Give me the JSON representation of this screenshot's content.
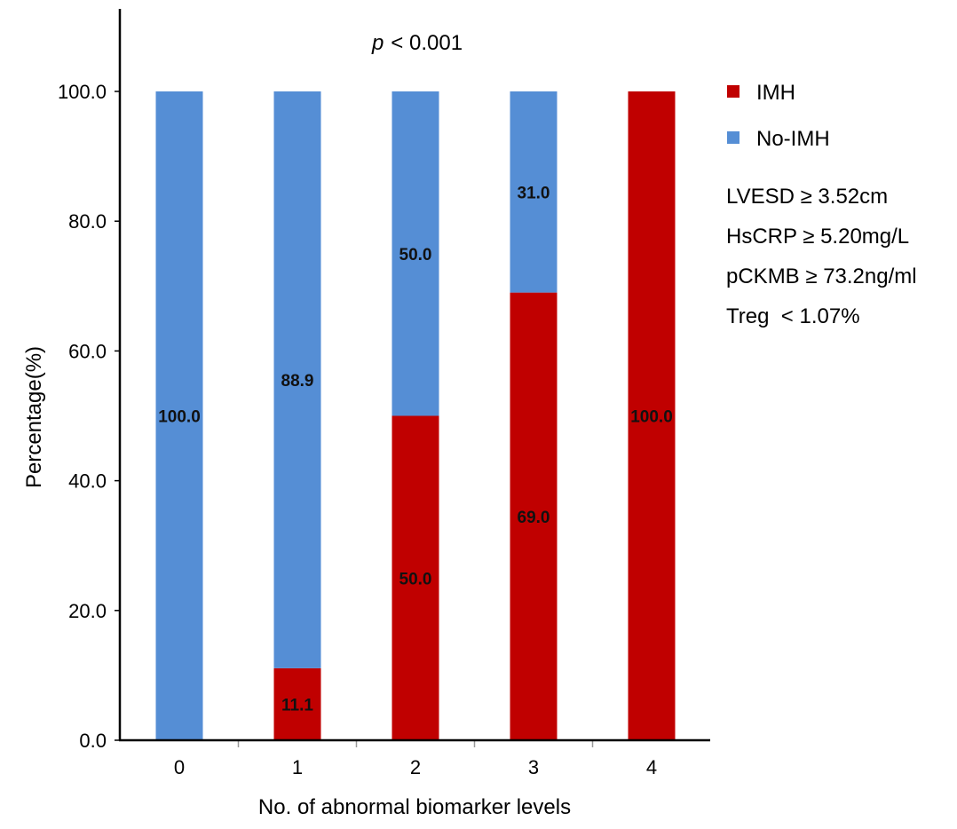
{
  "chart_data": {
    "type": "bar",
    "stacked": true,
    "title_prefix": "p",
    "title_suffix": "< 0.001",
    "xlabel": "No. of abnormal biomarker levels",
    "ylabel": "Percentage(%)",
    "ylim": [
      0,
      100
    ],
    "yticks": [
      "0.0",
      "20.0",
      "40.0",
      "60.0",
      "80.0",
      "100.0"
    ],
    "categories": [
      "0",
      "1",
      "2",
      "3",
      "4"
    ],
    "series": [
      {
        "name": "IMH",
        "color": "#C00000",
        "values": [
          0,
          11.1,
          50.0,
          69.0,
          100.0
        ],
        "labels": [
          "",
          "11.1",
          "50.0",
          "69.0",
          "100.0"
        ]
      },
      {
        "name": "No-IMH",
        "color": "#558ED5",
        "values": [
          100.0,
          88.9,
          50.0,
          31.0,
          0
        ],
        "labels": [
          "100.0",
          "88.9",
          "50.0",
          "31.0",
          ""
        ]
      }
    ],
    "legend_position": "right",
    "grid": false,
    "annotations": [
      "LVESD ≥ 3.52cm",
      "HsCRP ≥ 5.20mg/L",
      "pCKMB ≥ 73.2ng/ml",
      "Treg  < 1.07%"
    ]
  }
}
